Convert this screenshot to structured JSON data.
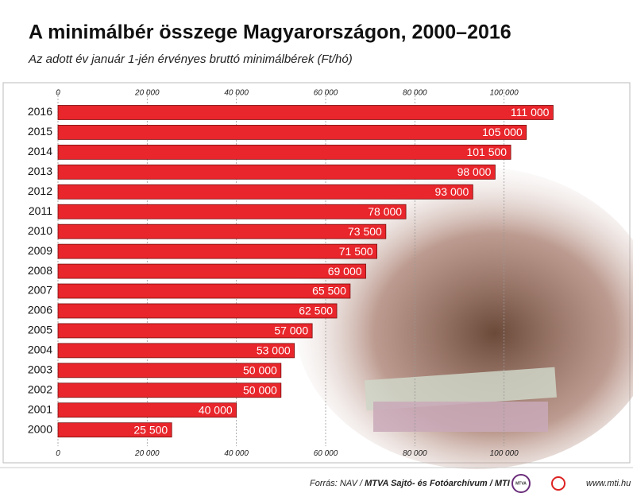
{
  "chart_data": {
    "type": "bar",
    "orientation": "horizontal",
    "title": "A minimálbér összege Magyarországon, 2000–2016",
    "subtitle": "Az adott év január 1-jén érvényes bruttó minimálbérek (Ft/hó)",
    "categories": [
      "2016",
      "2015",
      "2014",
      "2013",
      "2012",
      "2011",
      "2010",
      "2009",
      "2008",
      "2007",
      "2006",
      "2005",
      "2004",
      "2003",
      "2002",
      "2001",
      "2000"
    ],
    "values": [
      111000,
      105000,
      101500,
      98000,
      93000,
      78000,
      73500,
      71500,
      69000,
      65500,
      62500,
      57000,
      53000,
      50000,
      50000,
      40000,
      25500
    ],
    "value_labels": [
      "111 000",
      "105 000",
      "101 500",
      "98 000",
      "93 000",
      "78 000",
      "73 500",
      "71 500",
      "69 000",
      "65 500",
      "62 500",
      "57 000",
      "53 000",
      "50 000",
      "50 000",
      "40 000",
      "25 500"
    ],
    "color": "#e8262b",
    "xlim": [
      0,
      120000
    ],
    "xticks": [
      0,
      {
        "value": 20000,
        "label": "20 000"
      },
      {
        "value": 40000,
        "label": "40 000"
      },
      {
        "value": 60000,
        "label": "60 000"
      },
      {
        "value": 80000,
        "label": "80 000"
      },
      {
        "value": 100000,
        "label": "100 000"
      }
    ],
    "grid": true,
    "source": "Forrás: NAV / ",
    "source_bold": "MTVA Sajtó- és Fotóarchívum / MTI",
    "logo": "MTVA",
    "website": "www.mti.hu"
  }
}
